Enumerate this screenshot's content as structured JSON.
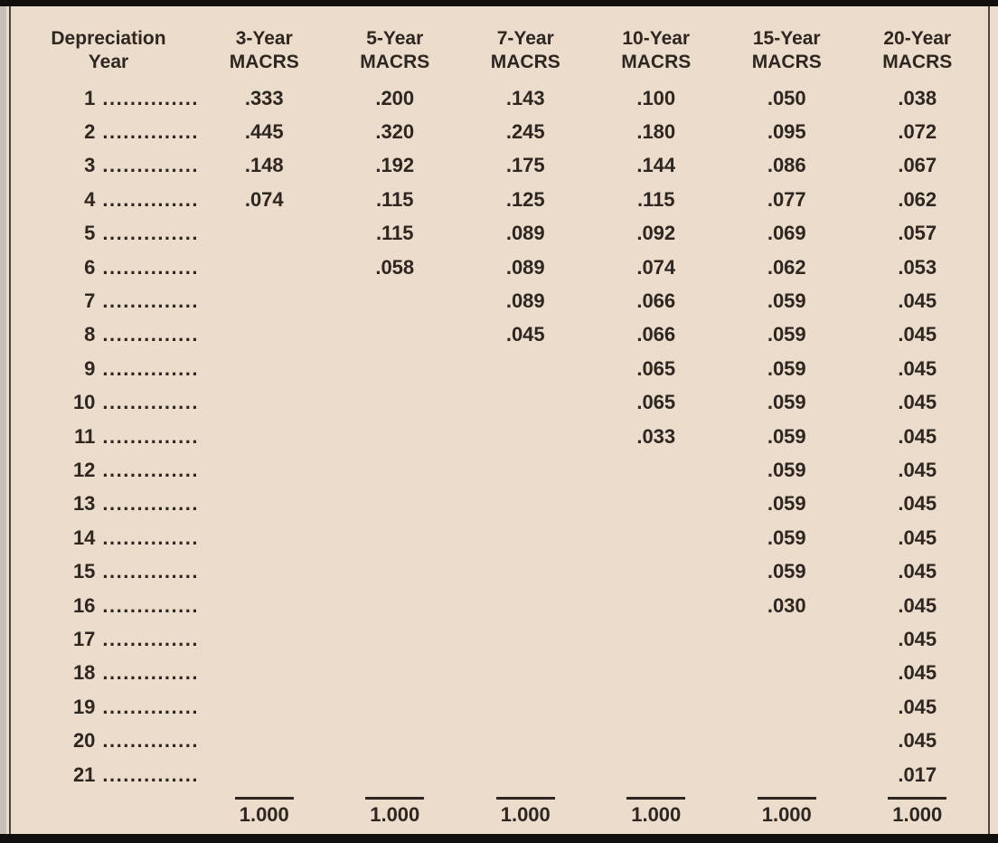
{
  "frame": {
    "background": "#ecdccb",
    "bar_color": "#12100e",
    "rule_color": "#4c443e",
    "text_color": "#2e2721"
  },
  "table": {
    "dot_leader": "..............",
    "header": {
      "year_column": [
        "Depreciation",
        "Year"
      ],
      "columns": [
        [
          "3-Year",
          "MACRS"
        ],
        [
          "5-Year",
          "MACRS"
        ],
        [
          "7-Year",
          "MACRS"
        ],
        [
          "10-Year",
          "MACRS"
        ],
        [
          "15-Year",
          "MACRS"
        ],
        [
          "20-Year",
          "MACRS"
        ]
      ]
    },
    "rows": [
      {
        "year": "1",
        "values": [
          ".333",
          ".200",
          ".143",
          ".100",
          ".050",
          ".038"
        ]
      },
      {
        "year": "2",
        "values": [
          ".445",
          ".320",
          ".245",
          ".180",
          ".095",
          ".072"
        ]
      },
      {
        "year": "3",
        "values": [
          ".148",
          ".192",
          ".175",
          ".144",
          ".086",
          ".067"
        ]
      },
      {
        "year": "4",
        "values": [
          ".074",
          ".115",
          ".125",
          ".115",
          ".077",
          ".062"
        ]
      },
      {
        "year": "5",
        "values": [
          "",
          ".115",
          ".089",
          ".092",
          ".069",
          ".057"
        ]
      },
      {
        "year": "6",
        "values": [
          "",
          ".058",
          ".089",
          ".074",
          ".062",
          ".053"
        ]
      },
      {
        "year": "7",
        "values": [
          "",
          "",
          ".089",
          ".066",
          ".059",
          ".045"
        ]
      },
      {
        "year": "8",
        "values": [
          "",
          "",
          ".045",
          ".066",
          ".059",
          ".045"
        ]
      },
      {
        "year": "9",
        "values": [
          "",
          "",
          "",
          ".065",
          ".059",
          ".045"
        ]
      },
      {
        "year": "10",
        "values": [
          "",
          "",
          "",
          ".065",
          ".059",
          ".045"
        ]
      },
      {
        "year": "11",
        "values": [
          "",
          "",
          "",
          ".033",
          ".059",
          ".045"
        ]
      },
      {
        "year": "12",
        "values": [
          "",
          "",
          "",
          "",
          ".059",
          ".045"
        ]
      },
      {
        "year": "13",
        "values": [
          "",
          "",
          "",
          "",
          ".059",
          ".045"
        ]
      },
      {
        "year": "14",
        "values": [
          "",
          "",
          "",
          "",
          ".059",
          ".045"
        ]
      },
      {
        "year": "15",
        "values": [
          "",
          "",
          "",
          "",
          ".059",
          ".045"
        ]
      },
      {
        "year": "16",
        "values": [
          "",
          "",
          "",
          "",
          ".030",
          ".045"
        ]
      },
      {
        "year": "17",
        "values": [
          "",
          "",
          "",
          "",
          "",
          ".045"
        ]
      },
      {
        "year": "18",
        "values": [
          "",
          "",
          "",
          "",
          "",
          ".045"
        ]
      },
      {
        "year": "19",
        "values": [
          "",
          "",
          "",
          "",
          "",
          ".045"
        ]
      },
      {
        "year": "20",
        "values": [
          "",
          "",
          "",
          "",
          "",
          ".045"
        ]
      },
      {
        "year": "21",
        "values": [
          "",
          "",
          "",
          "",
          "",
          ".017"
        ]
      }
    ],
    "totals": [
      "1.000",
      "1.000",
      "1.000",
      "1.000",
      "1.000",
      "1.000"
    ]
  }
}
